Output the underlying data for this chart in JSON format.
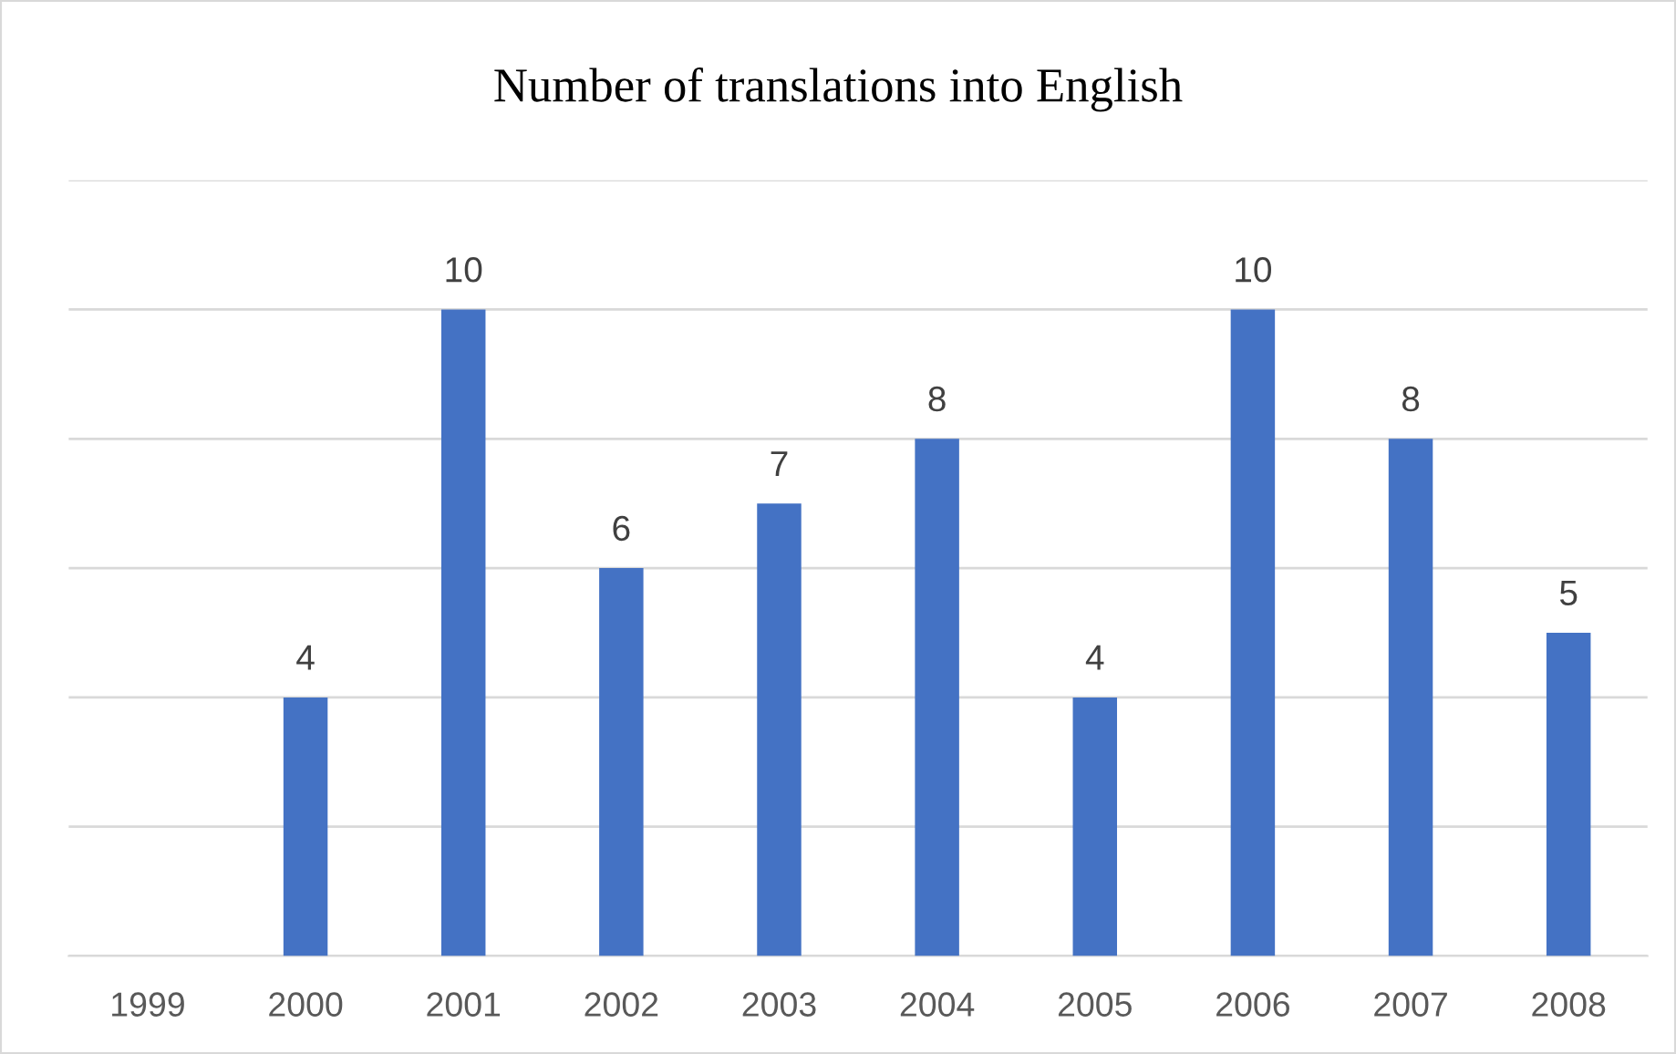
{
  "chart_data": {
    "type": "bar",
    "title": "Number of translations into English",
    "categories": [
      "1999",
      "2000",
      "2001",
      "2002",
      "2003",
      "2004",
      "2005",
      "2006",
      "2007",
      "2008"
    ],
    "values": [
      null,
      4,
      10,
      6,
      7,
      8,
      4,
      10,
      8,
      5
    ],
    "color": "#4472c4",
    "data_labels": true,
    "ylim": [
      0,
      12
    ],
    "yticks": [
      {
        "value": 0,
        "label": null
      },
      {
        "value": 2,
        "label": null
      },
      {
        "value": 4,
        "label": null
      },
      {
        "value": 6,
        "label": null
      },
      {
        "value": 8,
        "label": null
      },
      {
        "value": 10,
        "label": null
      },
      {
        "value": 12,
        "label": null
      }
    ],
    "grid": "y",
    "tick_labels": "x"
  }
}
